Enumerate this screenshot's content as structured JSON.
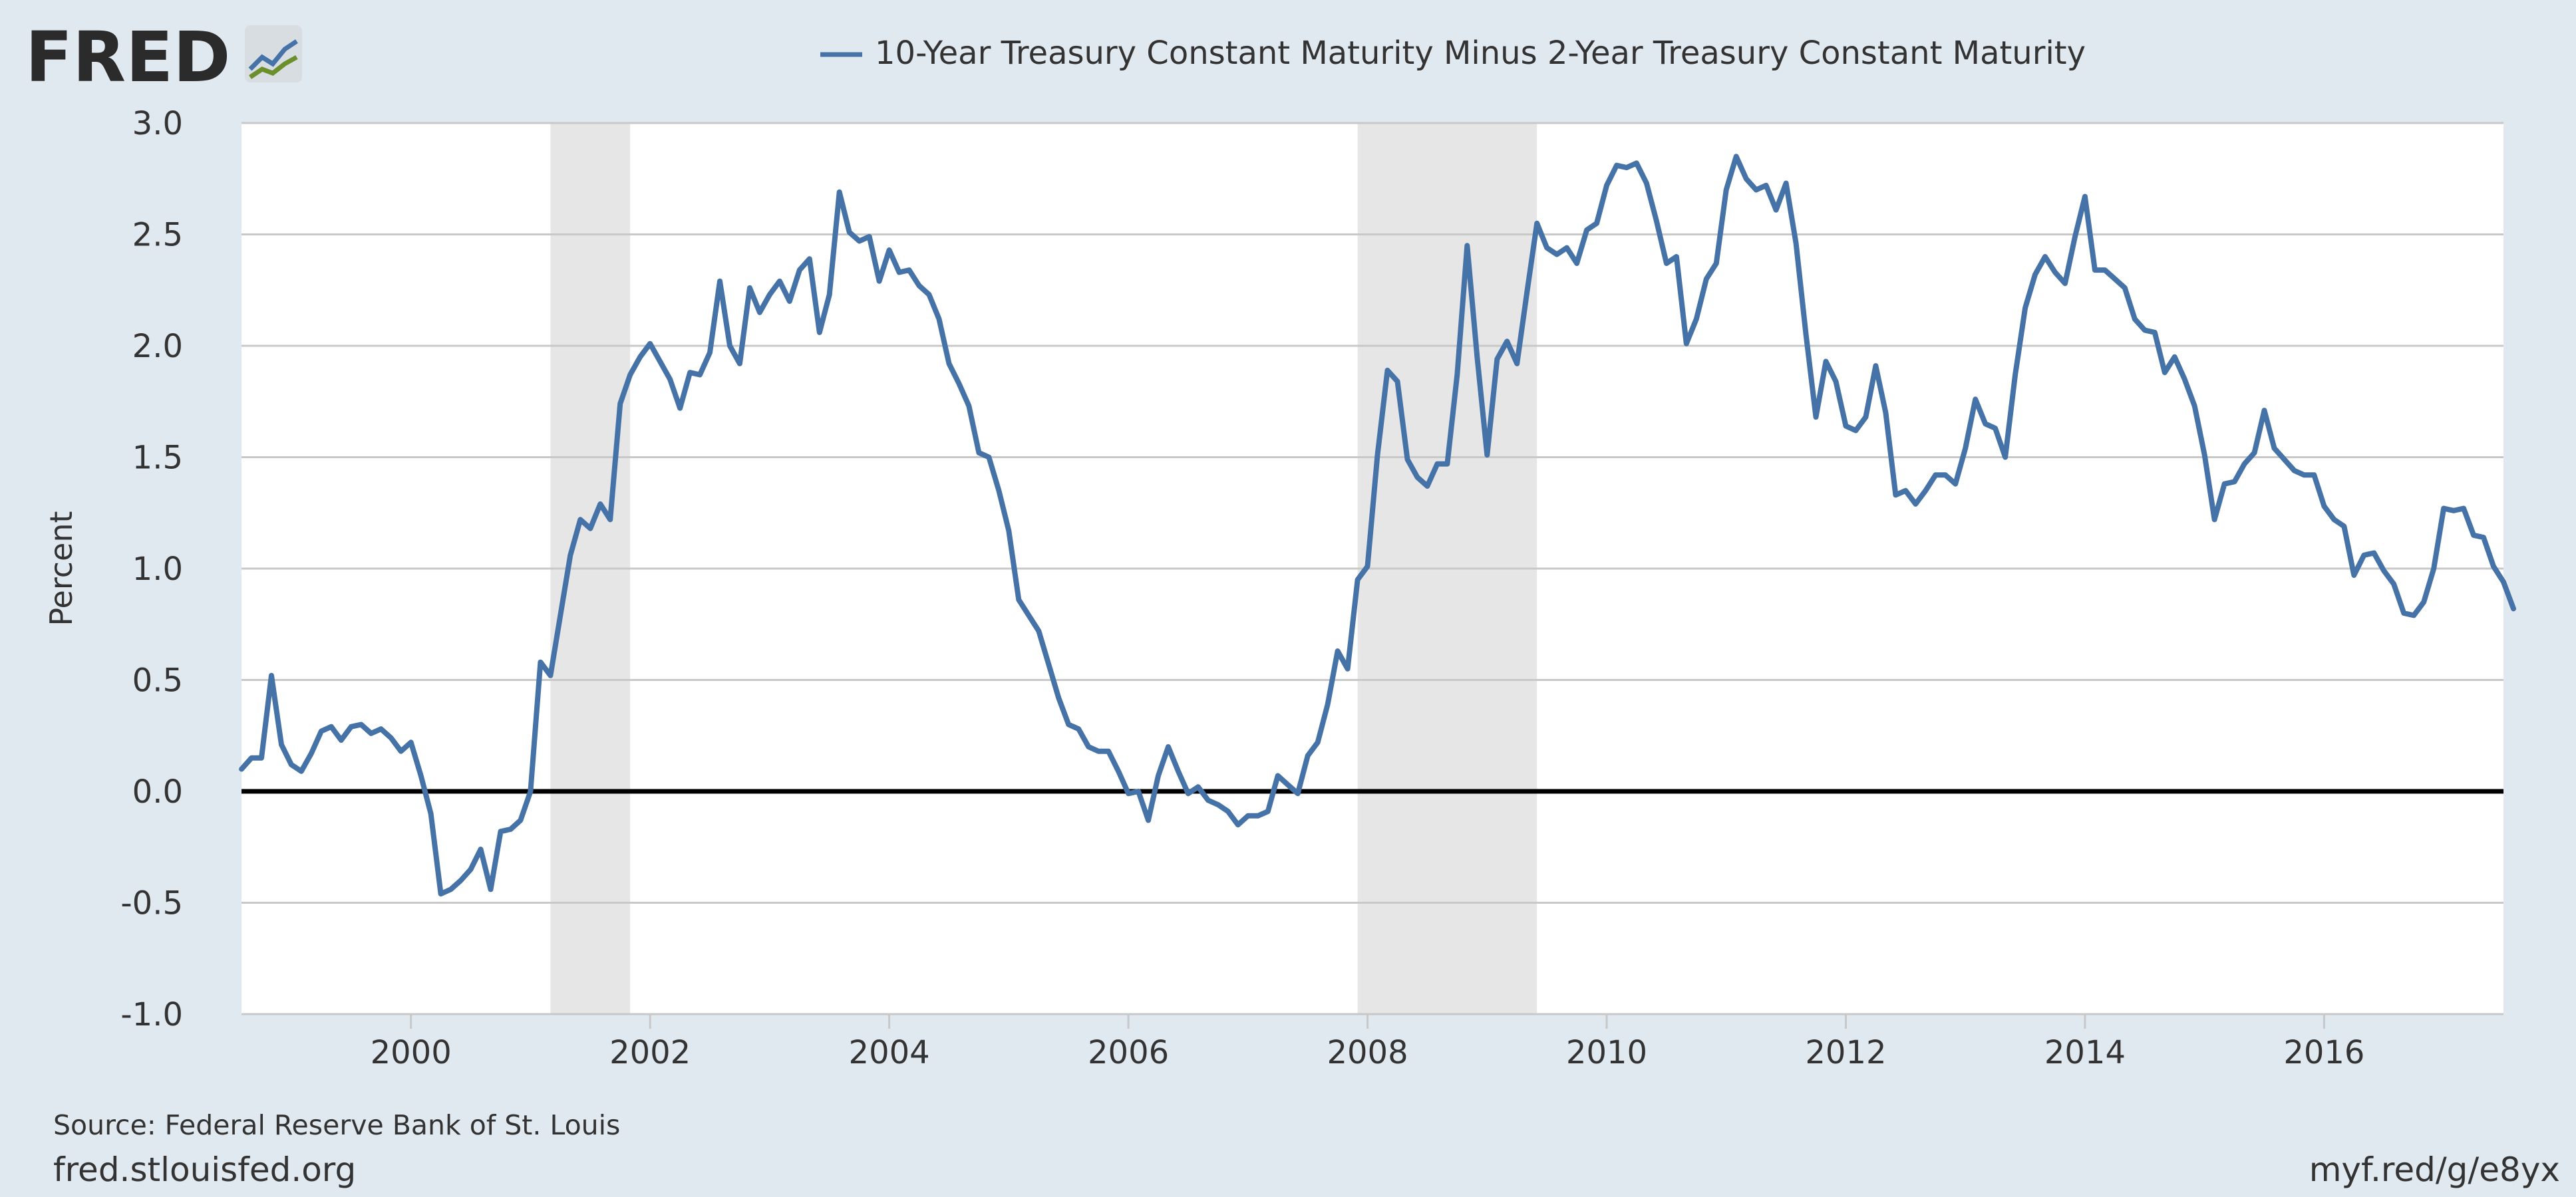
{
  "brand": {
    "logo_text": "FRED",
    "logo_icon": "fred-chart-icon"
  },
  "chart_data": {
    "type": "line",
    "title": "",
    "xlabel": "",
    "ylabel": "Percent",
    "ylim": [
      -1.0,
      3.0
    ],
    "xlim": [
      1998.583,
      2017.5
    ],
    "grid": true,
    "legend_position": "top-center",
    "zero_line": true,
    "y_ticks": [
      "-1.0",
      "-0.5",
      "0.0",
      "0.5",
      "1.0",
      "1.5",
      "2.0",
      "2.5",
      "3.0"
    ],
    "x_ticks": [
      "2000",
      "2002",
      "2004",
      "2006",
      "2008",
      "2010",
      "2012",
      "2014",
      "2016"
    ],
    "recessions": [
      {
        "start": 2001.167,
        "end": 2001.833
      },
      {
        "start": 2007.917,
        "end": 2009.417
      }
    ],
    "series": [
      {
        "name": "10-Year Treasury Constant Maturity Minus 2-Year Treasury Constant Maturity",
        "color": "#4572a7",
        "start": "1998-08",
        "values": [
          0.1,
          0.15,
          0.15,
          0.52,
          0.21,
          0.12,
          0.09,
          0.17,
          0.27,
          0.29,
          0.23,
          0.29,
          0.3,
          0.26,
          0.28,
          0.24,
          0.18,
          0.22,
          0.07,
          -0.1,
          -0.46,
          -0.44,
          -0.4,
          -0.35,
          -0.26,
          -0.44,
          -0.18,
          -0.17,
          -0.13,
          0.0,
          0.58,
          0.52,
          0.79,
          1.06,
          1.22,
          1.18,
          1.29,
          1.22,
          1.74,
          1.87,
          1.95,
          2.01,
          1.93,
          1.85,
          1.72,
          1.88,
          1.87,
          1.97,
          2.29,
          2.0,
          1.92,
          2.26,
          2.15,
          2.23,
          2.29,
          2.2,
          2.34,
          2.39,
          2.06,
          2.23,
          2.69,
          2.51,
          2.47,
          2.49,
          2.29,
          2.43,
          2.33,
          2.34,
          2.27,
          2.23,
          2.12,
          1.92,
          1.83,
          1.73,
          1.52,
          1.5,
          1.35,
          1.17,
          0.86,
          0.79,
          0.72,
          0.57,
          0.42,
          0.3,
          0.28,
          0.2,
          0.18,
          0.18,
          0.09,
          -0.01,
          0.0,
          -0.13,
          0.07,
          0.2,
          0.09,
          -0.01,
          0.02,
          -0.04,
          -0.06,
          -0.09,
          -0.15,
          -0.11,
          -0.11,
          -0.09,
          0.07,
          0.03,
          -0.01,
          0.16,
          0.22,
          0.39,
          0.63,
          0.55,
          0.95,
          1.01,
          1.51,
          1.89,
          1.84,
          1.49,
          1.41,
          1.37,
          1.47,
          1.47,
          1.87,
          2.45,
          1.95,
          1.51,
          1.94,
          2.02,
          1.92,
          2.24,
          2.55,
          2.44,
          2.41,
          2.44,
          2.37,
          2.52,
          2.55,
          2.72,
          2.81,
          2.8,
          2.82,
          2.73,
          2.56,
          2.37,
          2.4,
          2.01,
          2.12,
          2.3,
          2.37,
          2.7,
          2.85,
          2.75,
          2.7,
          2.72,
          2.61,
          2.73,
          2.46,
          2.05,
          1.68,
          1.93,
          1.84,
          1.64,
          1.62,
          1.68,
          1.91,
          1.7,
          1.33,
          1.35,
          1.29,
          1.35,
          1.42,
          1.42,
          1.38,
          1.54,
          1.76,
          1.65,
          1.63,
          1.5,
          1.87,
          2.17,
          2.32,
          2.4,
          2.33,
          2.28,
          2.49,
          2.67,
          2.34,
          2.34,
          2.3,
          2.26,
          2.12,
          2.07,
          2.06,
          1.88,
          1.95,
          1.85,
          1.73,
          1.51,
          1.22,
          1.38,
          1.39,
          1.47,
          1.52,
          1.71,
          1.54,
          1.49,
          1.44,
          1.42,
          1.42,
          1.28,
          1.22,
          1.19,
          0.97,
          1.06,
          1.07,
          0.99,
          0.93,
          0.8,
          0.79,
          0.85,
          1.0,
          1.27,
          1.26,
          1.27,
          1.15,
          1.14,
          1.01,
          0.94,
          0.82
        ]
      }
    ]
  },
  "footer": {
    "source": "Source: Federal Reserve Bank of St. Louis",
    "site": "fred.stlouisfed.org",
    "short_link": "myf.red/g/e8yx"
  },
  "colors": {
    "background": "#e1e9f0",
    "plot_background": "#ffffff",
    "grid": "#c8c8c8",
    "recession": "#e6e6e6",
    "zero_line": "#000000",
    "series": "#4572a7",
    "text": "#333333"
  }
}
